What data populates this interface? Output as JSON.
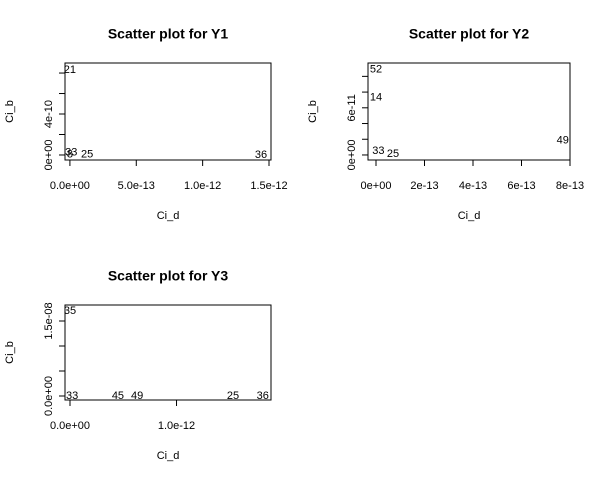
{
  "chart_data": [
    {
      "type": "scatter",
      "title": "Scatter plot for Y1",
      "xlabel": "Ci_d",
      "ylabel": "Ci_b",
      "xlim": [
        -3.7e-14,
        1.515e-12
      ],
      "ylim": [
        -4.9e-11,
        8.98e-10
      ],
      "xticks": [
        {
          "value": 0,
          "label": "0.0e+00"
        },
        {
          "value": 5e-13,
          "label": "5.0e-13"
        },
        {
          "value": 1e-12,
          "label": "1.0e-12"
        },
        {
          "value": 1.5e-12,
          "label": "1.5e-12"
        }
      ],
      "yticks": [
        {
          "value": 0,
          "label": "0e+00"
        },
        {
          "value": 2e-10,
          "label": null
        },
        {
          "value": 4e-10,
          "label": "4e-10"
        },
        {
          "value": 6e-10,
          "label": null
        },
        {
          "value": 8e-10,
          "label": null
        }
      ],
      "points": {
        "x": [
          0,
          1e-14,
          1.3e-13,
          1.44e-12,
          0
        ],
        "y": [
          8.3e-10,
          2.2e-11,
          2e-12,
          0,
          3e-12
        ],
        "labels": [
          "21",
          "33",
          "25",
          "36",
          "8"
        ]
      }
    },
    {
      "type": "scatter",
      "title": "Scatter plot for Y2",
      "xlabel": "Ci_d",
      "ylabel": "Ci_b",
      "xlim": [
        -3.3e-14,
        8e-13
      ],
      "ylim": [
        -6.4e-12,
        1.17e-10
      ],
      "xticks": [
        {
          "value": 0,
          "label": "0e+00"
        },
        {
          "value": 2e-13,
          "label": "2e-13"
        },
        {
          "value": 4e-13,
          "label": "4e-13"
        },
        {
          "value": 6e-13,
          "label": "6e-13"
        },
        {
          "value": 8e-13,
          "label": "8e-13"
        }
      ],
      "yticks": [
        {
          "value": 0,
          "label": "0e+00"
        },
        {
          "value": 2e-11,
          "label": null
        },
        {
          "value": 4e-11,
          "label": null
        },
        {
          "value": 6e-11,
          "label": "6e-11"
        },
        {
          "value": 8e-11,
          "label": null
        },
        {
          "value": 1e-10,
          "label": null
        }
      ],
      "points": {
        "x": [
          0,
          0,
          7.7e-13,
          1e-14,
          7e-14
        ],
        "y": [
          1.085e-10,
          7.3e-11,
          1.8e-11,
          5e-12,
          1e-12
        ],
        "labels": [
          "52",
          "14",
          "49",
          "33",
          "25"
        ]
      }
    },
    {
      "type": "scatter",
      "title": "Scatter plot for Y3",
      "xlabel": "Ci_d",
      "ylabel": "Ci_b",
      "xlim": [
        -4.7e-14,
        1.887e-12
      ],
      "ylim": [
        -8e-10,
        1.82e-08
      ],
      "xticks": [
        {
          "value": 0,
          "label": "0.0e+00"
        },
        {
          "value": 1e-12,
          "label": "1.0e-12"
        }
      ],
      "yticks": [
        {
          "value": 0,
          "label": "0.0e+00"
        },
        {
          "value": 5e-09,
          "label": null
        },
        {
          "value": 1e-08,
          "label": null
        },
        {
          "value": 1.5e-08,
          "label": "1.5e-08"
        }
      ],
      "points": {
        "x": [
          0,
          1.53e-12,
          1.81e-12,
          6.3e-13,
          4.5e-13,
          2e-14
        ],
        "y": [
          1.7e-08,
          0,
          0,
          0,
          0,
          0
        ],
        "labels": [
          "35",
          "25",
          "36",
          "49",
          "45",
          "33"
        ]
      }
    }
  ]
}
